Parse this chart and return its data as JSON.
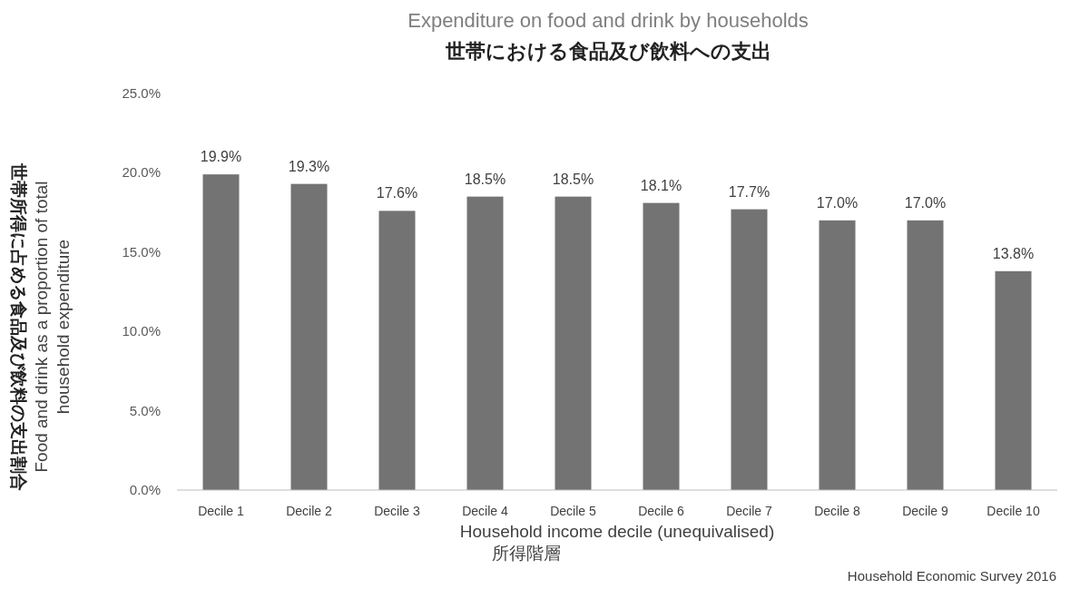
{
  "chart_data": {
    "type": "bar",
    "title": "Expenditure on food and drink by households",
    "subtitle": "世帯における食品及び飲料への支出",
    "xlabel": "Household income decile (unequivalised)\n所得階層",
    "ylabel": "世帯所得に占める食品及び飲料の支出割合\nFood and drink as a proportion of total\nhousehold expenditure",
    "categories": [
      "Decile 1",
      "Decile 2",
      "Decile 3",
      "Decile 4",
      "Decile 5",
      "Decile 6",
      "Decile 7",
      "Decile 8",
      "Decile 9",
      "Decile 10"
    ],
    "values": [
      19.9,
      19.3,
      17.6,
      18.5,
      18.5,
      18.1,
      17.7,
      17.0,
      17.0,
      13.8
    ],
    "value_labels": [
      "19.9%",
      "19.3%",
      "17.6%",
      "18.5%",
      "18.5%",
      "18.1%",
      "17.7%",
      "17.0%",
      "17.0%",
      "13.8%"
    ],
    "color": "#737373",
    "ylim": [
      0,
      25
    ],
    "yticks": [
      {
        "value": 0,
        "label": "0.0%"
      },
      {
        "value": 5,
        "label": "5.0%"
      },
      {
        "value": 10,
        "label": "10.0%"
      },
      {
        "value": 15,
        "label": "15.0%"
      },
      {
        "value": 20,
        "label": "20.0%"
      },
      {
        "value": 25,
        "label": "25.0%"
      }
    ],
    "grid": false,
    "annotations": [
      "Household Economic Survey 2016"
    ]
  }
}
